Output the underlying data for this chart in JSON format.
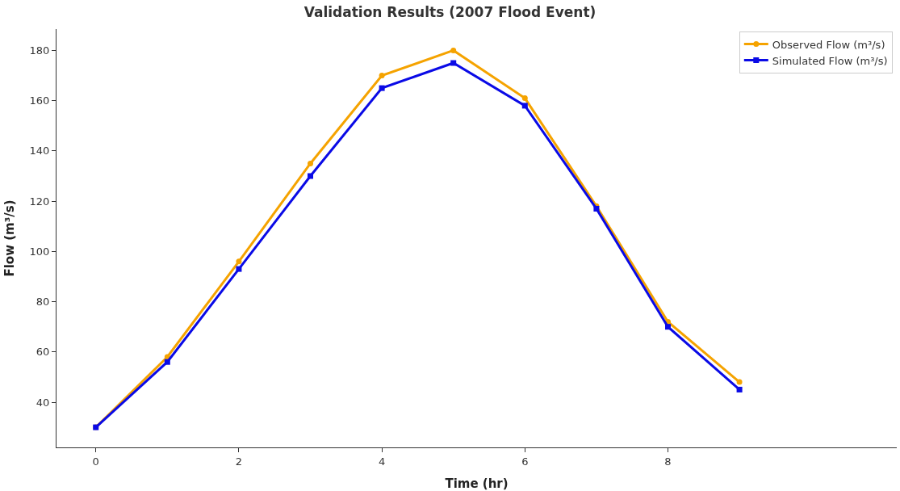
{
  "chart_data": {
    "type": "line",
    "title": "Validation Results (2007 Flood Event)",
    "xlabel": "Time (hr)",
    "ylabel": "Flow (m³/s)",
    "x": [
      0,
      1,
      2,
      3,
      4,
      5,
      6,
      7,
      8,
      9
    ],
    "series": [
      {
        "name": "Observed Flow (m³/s)",
        "color": "#f5a300",
        "marker": "circle",
        "values": [
          30,
          58,
          96,
          135,
          170,
          180,
          161,
          118,
          72,
          48
        ]
      },
      {
        "name": "Simulated Flow (m³/s)",
        "color": "#0a0ae6",
        "marker": "square",
        "values": [
          30,
          56,
          93,
          130,
          165,
          175,
          158,
          117,
          70,
          45
        ]
      }
    ],
    "xlim": [
      -0.55,
      11.2
    ],
    "xticks": [
      0,
      2,
      4,
      6,
      8
    ],
    "ylim": [
      22,
      188.5
    ],
    "yticks": [
      40,
      60,
      80,
      100,
      120,
      140,
      160,
      180
    ],
    "legend": "top right",
    "line_style": "solid"
  }
}
